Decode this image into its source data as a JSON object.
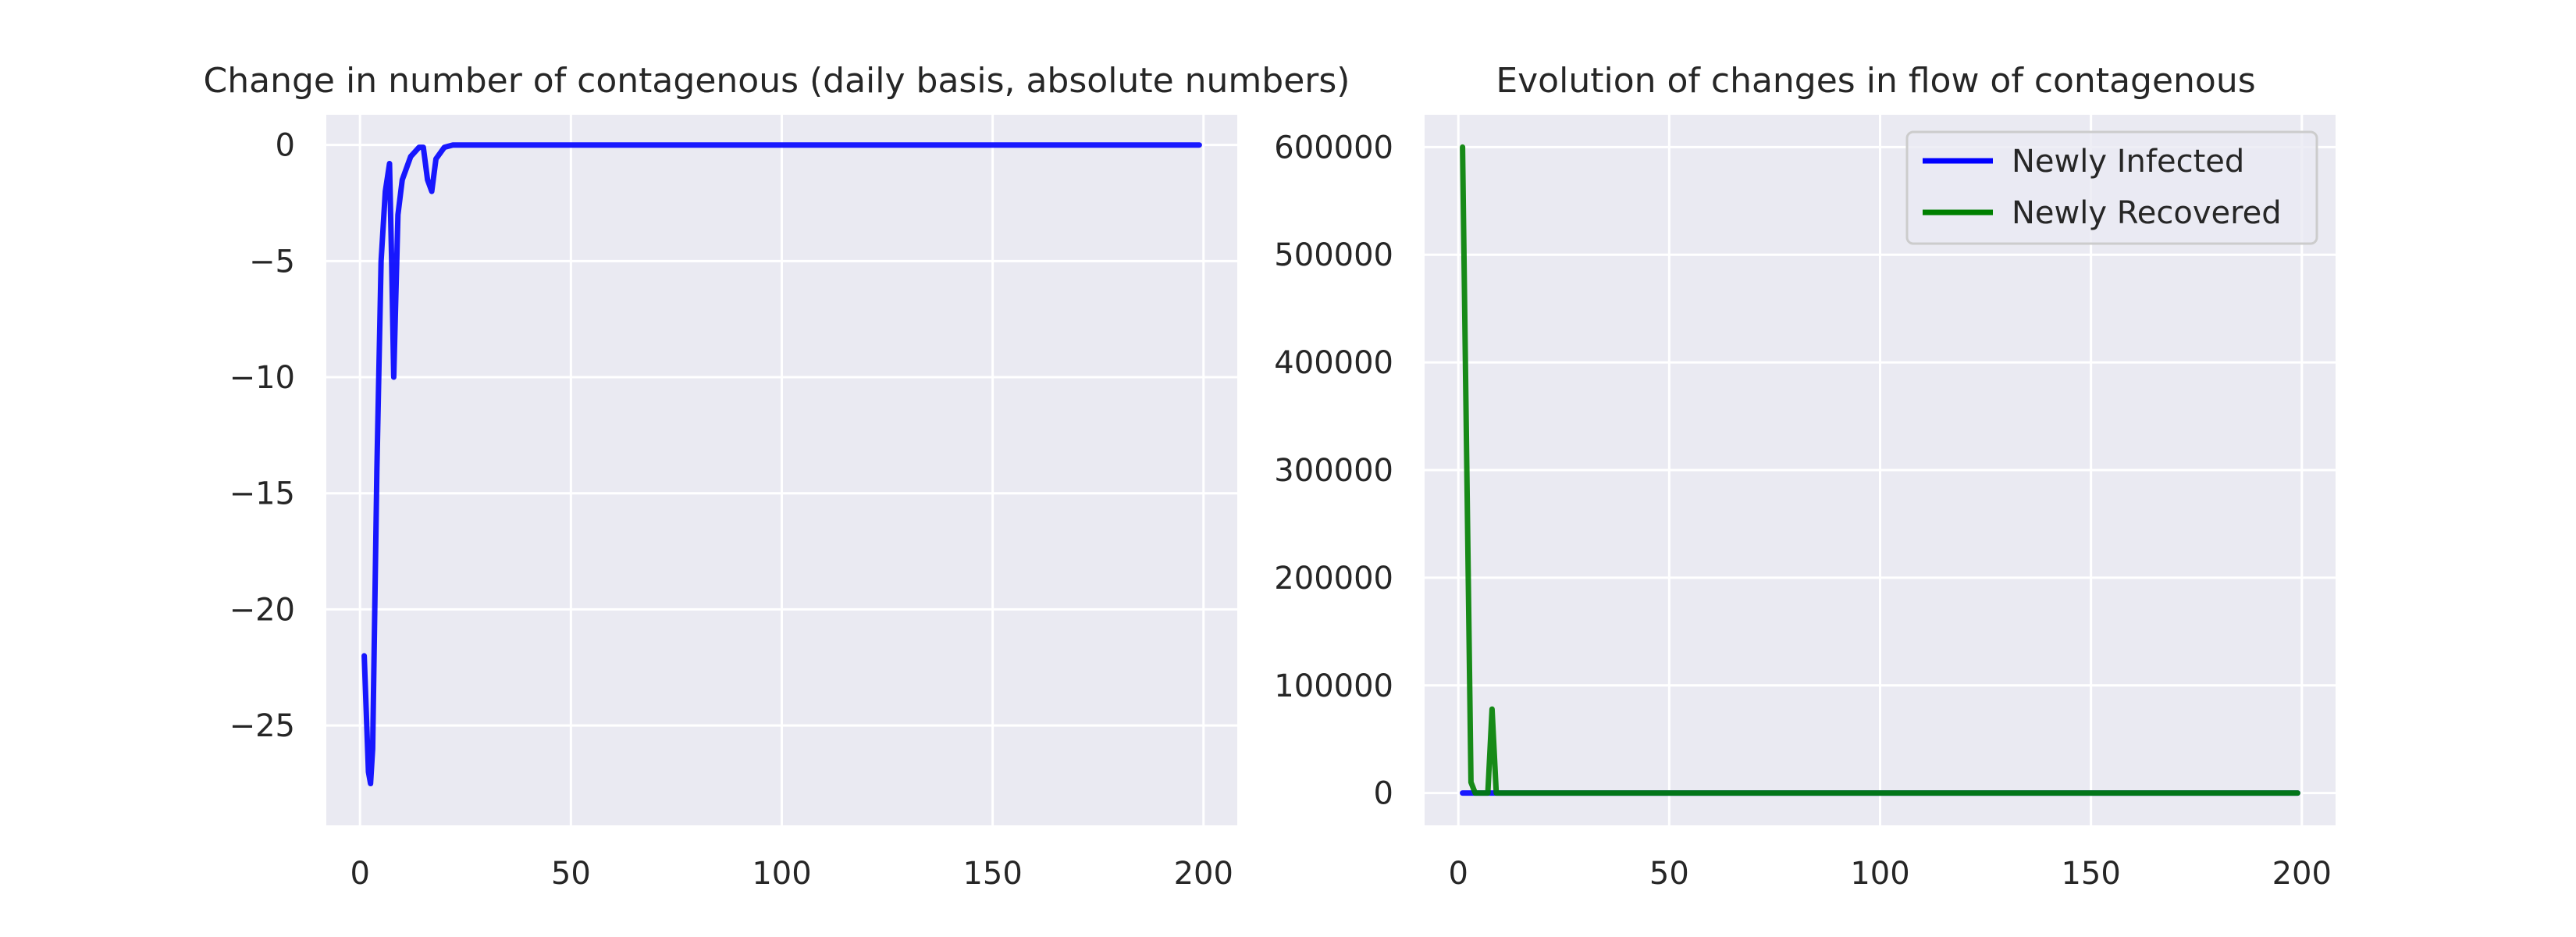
{
  "chart_data": [
    {
      "type": "line",
      "title": "Change in number of contagenous (daily basis, absolute numbers)",
      "xlabel": "",
      "ylabel": "",
      "xlim": [
        -8,
        208
      ],
      "ylim": [
        -29.3,
        1.3
      ],
      "xticks": [
        0,
        50,
        100,
        150,
        200
      ],
      "xtick_labels": [
        "0",
        "50",
        "100",
        "150",
        "200"
      ],
      "yticks": [
        0,
        -5,
        -10,
        -15,
        -20,
        -25
      ],
      "ytick_labels": [
        "0",
        "−5",
        "−10",
        "−15",
        "−20",
        "−25"
      ],
      "grid": true,
      "legend": null,
      "series": [
        {
          "color": "#0000ff",
          "x": [
            1,
            2,
            2.5,
            3,
            4,
            5,
            6,
            7,
            7.5,
            8,
            9,
            10,
            12,
            14,
            15,
            16,
            17,
            18,
            20,
            22,
            25,
            30,
            50,
            100,
            150,
            199
          ],
          "values": [
            -22,
            -27,
            -27.5,
            -26,
            -14,
            -5,
            -2,
            -0.8,
            -5,
            -10,
            -3,
            -1.5,
            -0.5,
            -0.1,
            -0.1,
            -1.5,
            -2,
            -0.6,
            -0.1,
            0,
            0,
            0,
            0,
            0,
            0,
            0
          ]
        }
      ]
    },
    {
      "type": "line",
      "title": "Evolution of changes in flow of contagenous",
      "xlabel": "",
      "ylabel": "",
      "xlim": [
        -8,
        208
      ],
      "ylim": [
        -30000,
        630000
      ],
      "xticks": [
        0,
        50,
        100,
        150,
        200
      ],
      "xtick_labels": [
        "0",
        "50",
        "100",
        "150",
        "200"
      ],
      "yticks": [
        0,
        100000,
        200000,
        300000,
        400000,
        500000,
        600000
      ],
      "ytick_labels": [
        "0",
        "100000",
        "200000",
        "300000",
        "400000",
        "500000",
        "600000"
      ],
      "grid": true,
      "legend": "top-right",
      "series": [
        {
          "name": "Newly Infected",
          "color": "#0000ff",
          "x": [
            1,
            3,
            5,
            8,
            10,
            50,
            100,
            150,
            199
          ],
          "values": [
            0,
            0,
            0,
            0,
            0,
            0,
            0,
            0,
            0
          ]
        },
        {
          "name": "Newly Recovered",
          "color": "#008000",
          "x": [
            1,
            3,
            4,
            7,
            8,
            9,
            10,
            20,
            50,
            100,
            150,
            199
          ],
          "values": [
            600000,
            10000,
            0,
            0,
            78000,
            0,
            0,
            0,
            0,
            0,
            0,
            0
          ]
        }
      ]
    }
  ]
}
